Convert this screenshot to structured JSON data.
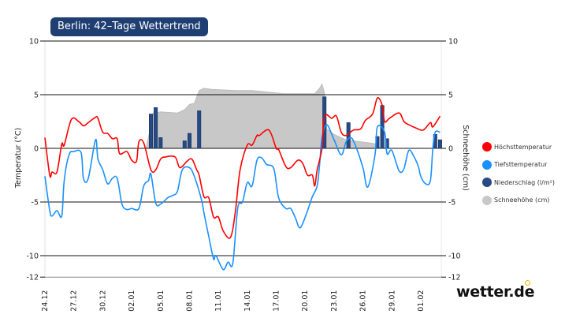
{
  "title": "Berlin: 42–Tage Wettertrend",
  "logo": "wetter.de",
  "colors": {
    "max": "#ff0000",
    "min": "#1a90ff",
    "precip": "#254a85",
    "snow": "#c8c8c8",
    "title_bg": "#1f3f73",
    "logo_accent": "#f5b400"
  },
  "chart_data": {
    "type": "line",
    "title": "Berlin: 42–Tage Wettertrend",
    "ylabel": "Temperatur (°C)",
    "y2label": "Schneehöhe (cm)",
    "ylim": [
      -12,
      10
    ],
    "y2lim": [
      -12,
      10
    ],
    "yticks": [
      10,
      5,
      0,
      -5,
      -10,
      -12
    ],
    "xticks": [
      "24.12",
      "27.12",
      "30.12",
      "02.01",
      "05.01",
      "08.01",
      "11.01",
      "14.01",
      "17.01",
      "20.01",
      "23.01",
      "26.01",
      "29.01",
      "01.02"
    ],
    "grid": true,
    "legend_position": "right",
    "legend": [
      "Höchsttemperatur",
      "Tiefsttemperatur",
      "Niederschlag (l/m²)",
      "Schneehöhe (cm)"
    ],
    "series": [
      {
        "name": "Höchsttemperatur",
        "type": "line",
        "color": "#ff0000",
        "points": [
          [
            "24.12 00",
            1
          ],
          [
            "24.12 12",
            -2.5
          ],
          [
            "24.12 18",
            -2.2
          ],
          [
            "25.12 06",
            -2.2
          ],
          [
            "25.12 18",
            0.4
          ],
          [
            "26.12 00",
            0.3
          ],
          [
            "26.12 18",
            2.7
          ],
          [
            "27.12 12",
            2.5
          ],
          [
            "28.12 00",
            2.1
          ],
          [
            "28.12 12",
            2.4
          ],
          [
            "29.12 06",
            2.9
          ],
          [
            "29.12 12",
            2.8
          ],
          [
            "30.12 00",
            1.5
          ],
          [
            "30.12 12",
            1.4
          ],
          [
            "31.12 00",
            0.9
          ],
          [
            "31.12 12",
            0.9
          ],
          [
            "31.12 18",
            -0.5
          ],
          [
            "01.01 12",
            -0.3
          ],
          [
            "02.01 00",
            -1.1
          ],
          [
            "02.01 12",
            -1.2
          ],
          [
            "02.01 18",
            0.6
          ],
          [
            "03.01 06",
            0.5
          ],
          [
            "04.01 00",
            -2
          ],
          [
            "04.01 12",
            -2
          ],
          [
            "05.01 00",
            -1
          ],
          [
            "05.01 12",
            -0.8
          ],
          [
            "06.01 12",
            -0.8
          ],
          [
            "07.01 00",
            -1.8
          ],
          [
            "07.01 18",
            -1.2
          ],
          [
            "08.01 06",
            -1
          ],
          [
            "08.01 18",
            -2
          ],
          [
            "09.01 00",
            -2.5
          ],
          [
            "09.01 12",
            -4.5
          ],
          [
            "10.01 00",
            -4.6
          ],
          [
            "10.01 12",
            -6.4
          ],
          [
            "11.01 00",
            -6.4
          ],
          [
            "11.01 12",
            -7.7
          ],
          [
            "12.01 06",
            -8.3
          ],
          [
            "12.01 18",
            -6
          ],
          [
            "13.01 06",
            -2
          ],
          [
            "14.01 00",
            0.3
          ],
          [
            "14.01 12",
            0.3
          ],
          [
            "15.01 00",
            1.2
          ],
          [
            "15.01 06",
            1.2
          ],
          [
            "16.01 06",
            1.7
          ],
          [
            "17.01 00",
            0
          ],
          [
            "17.01 06",
            -0.1
          ],
          [
            "18.01 00",
            -1.7
          ],
          [
            "18.01 12",
            -1.8
          ],
          [
            "19.01 06",
            -1.1
          ],
          [
            "19.01 18",
            -1.4
          ],
          [
            "20.01 06",
            -2.5
          ],
          [
            "20.01 18",
            -2.5
          ],
          [
            "21.01 00",
            -3.5
          ],
          [
            "21.01 06",
            -2
          ],
          [
            "21.01 18",
            0
          ],
          [
            "22.01 00",
            3
          ],
          [
            "22.01 18",
            2.8
          ],
          [
            "23.01 06",
            3
          ],
          [
            "23.01 18",
            1.5
          ],
          [
            "24.01 06",
            1.2
          ],
          [
            "25.01 00",
            1.7
          ],
          [
            "25.01 18",
            1.8
          ],
          [
            "26.01 06",
            2.6
          ],
          [
            "27.01 00",
            3.2
          ],
          [
            "27.01 12",
            4.7
          ],
          [
            "28.01 00",
            4
          ],
          [
            "28.01 06",
            2.5
          ],
          [
            "28.01 18",
            2.8
          ],
          [
            "29.01 18",
            3.3
          ],
          [
            "30.01 06",
            2.5
          ],
          [
            "30.01 18",
            2.2
          ],
          [
            "31.01 12",
            1.9
          ],
          [
            "01.02 06",
            1.7
          ],
          [
            "02.02 00",
            2.4
          ],
          [
            "02.02 06",
            2
          ],
          [
            "03.02 00",
            3
          ]
        ]
      },
      {
        "name": "Tiefsttemperatur",
        "type": "line",
        "color": "#1a90ff",
        "points": [
          [
            "24.12 00",
            -2.6
          ],
          [
            "24.12 12",
            -5.8
          ],
          [
            "24.12 18",
            -6.3
          ],
          [
            "25.12 06",
            -5.8
          ],
          [
            "25.12 18",
            -6.3
          ],
          [
            "26.12 00",
            -3
          ],
          [
            "26.12 12",
            -0.6
          ],
          [
            "27.12 00",
            -0.3
          ],
          [
            "27.12 18",
            -0.4
          ],
          [
            "28.12 00",
            -2.8
          ],
          [
            "28.12 12",
            -2.8
          ],
          [
            "29.12 06",
            0.8
          ],
          [
            "29.12 12",
            -1
          ],
          [
            "30.12 00",
            -2
          ],
          [
            "30.12 12",
            -3.3
          ],
          [
            "31.12 00",
            -2.8
          ],
          [
            "31.12 12",
            -2.8
          ],
          [
            "01.01 00",
            -5.2
          ],
          [
            "01.01 12",
            -5.7
          ],
          [
            "02.01 00",
            -5.6
          ],
          [
            "02.01 18",
            -5.6
          ],
          [
            "03.01 06",
            -3.5
          ],
          [
            "03.01 18",
            -3
          ],
          [
            "04.01 00",
            -2.4
          ],
          [
            "04.01 12",
            -5.1
          ],
          [
            "05.01 00",
            -5.2
          ],
          [
            "05.01 18",
            -4.6
          ],
          [
            "06.01 06",
            -4.4
          ],
          [
            "06.01 18",
            -4
          ],
          [
            "07.01 06",
            -2
          ],
          [
            "08.01 00",
            -1.8
          ],
          [
            "08.01 12",
            -2.6
          ],
          [
            "09.01 06",
            -4.8
          ],
          [
            "09.01 12",
            -6
          ],
          [
            "10.01 00",
            -8.2
          ],
          [
            "10.01 12",
            -10.3
          ],
          [
            "10.01 18",
            -10
          ],
          [
            "11.01 12",
            -11.3
          ],
          [
            "12.01 00",
            -10.6
          ],
          [
            "12.01 12",
            -10.7
          ],
          [
            "13.01 00",
            -5.6
          ],
          [
            "13.01 12",
            -5
          ],
          [
            "14.01 00",
            -3.2
          ],
          [
            "14.01 12",
            -3.5
          ],
          [
            "15.01 00",
            -1.1
          ],
          [
            "15.01 12",
            -0.9
          ],
          [
            "16.01 00",
            -1.5
          ],
          [
            "16.01 18",
            -1.9
          ],
          [
            "17.01 06",
            -4.6
          ],
          [
            "18.01 00",
            -5.6
          ],
          [
            "18.01 12",
            -5.6
          ],
          [
            "19.01 00",
            -6.5
          ],
          [
            "19.01 12",
            -7.4
          ],
          [
            "20.01 06",
            -5.8
          ],
          [
            "20.01 18",
            -4.5
          ],
          [
            "21.01 06",
            -3.5
          ],
          [
            "21.01 12",
            -1.5
          ],
          [
            "21.01 18",
            1
          ],
          [
            "22.01 06",
            2.2
          ],
          [
            "23.01 00",
            0.8
          ],
          [
            "23.01 18",
            -0.6
          ],
          [
            "24.01 06",
            0.6
          ],
          [
            "24.01 18",
            1
          ],
          [
            "25.01 06",
            0.2
          ],
          [
            "26.01 00",
            -1.8
          ],
          [
            "26.01 12",
            -3.6
          ],
          [
            "27.01 06",
            -0.6
          ],
          [
            "27.01 12",
            2
          ],
          [
            "28.01 06",
            1.5
          ],
          [
            "28.01 12",
            -0.5
          ],
          [
            "29.01 00",
            -0.2
          ],
          [
            "29.01 18",
            -2.1
          ],
          [
            "30.01 06",
            -1.9
          ],
          [
            "30.01 18",
            -0.2
          ],
          [
            "31.01 06",
            -0.7
          ],
          [
            "31.01 18",
            -1.7
          ],
          [
            "01.02 00",
            -2.6
          ],
          [
            "01.02 12",
            -3.3
          ],
          [
            "02.02 00",
            -3
          ],
          [
            "02.02 06",
            0
          ],
          [
            "02.02 12",
            1.5
          ],
          [
            "03.02 00",
            1.5
          ]
        ]
      },
      {
        "name": "Niederschlag (l/m²)",
        "type": "bar",
        "color": "#254a85",
        "points": [
          [
            "04.01 00",
            3.2
          ],
          [
            "04.01 12",
            3.8
          ],
          [
            "05.01 00",
            1.0
          ],
          [
            "07.01 12",
            0.7
          ],
          [
            "08.01 00",
            1.4
          ],
          [
            "09.01 00",
            3.5
          ],
          [
            "22.01 00",
            4.8
          ],
          [
            "24.01 12",
            2.4
          ],
          [
            "27.01 12",
            1.1
          ],
          [
            "28.01 00",
            4.0
          ],
          [
            "28.01 12",
            0.9
          ],
          [
            "02.02 12",
            1.3
          ],
          [
            "03.02 00",
            0.8
          ]
        ]
      },
      {
        "name": "Schneehöhe (cm)",
        "type": "area",
        "color": "#c8c8c8",
        "points": [
          [
            "03.01 12",
            0
          ],
          [
            "04.01 06",
            3.3
          ],
          [
            "05.01 00",
            3.4
          ],
          [
            "06.01 18",
            3.3
          ],
          [
            "07.01 12",
            3.6
          ],
          [
            "08.01 00",
            4.1
          ],
          [
            "08.01 12",
            4.2
          ],
          [
            "09.01 00",
            5.4
          ],
          [
            "09.01 12",
            5.6
          ],
          [
            "10.01 06",
            5.5
          ],
          [
            "12.01 18",
            5.4
          ],
          [
            "14.01 12",
            5.4
          ],
          [
            "17.01 18",
            5.1
          ],
          [
            "21.01 00",
            5.1
          ],
          [
            "21.01 12",
            5.6
          ],
          [
            "21.01 18",
            6
          ],
          [
            "22.01 00",
            5.2
          ],
          [
            "22.01 06",
            1.8
          ],
          [
            "23.01 00",
            1.3
          ],
          [
            "24.01 06",
            0.8
          ],
          [
            "25.01 00",
            0.7
          ],
          [
            "26.01 18",
            0.5
          ],
          [
            "27.01 12",
            0.4
          ],
          [
            "27.01 18",
            0
          ]
        ]
      }
    ]
  }
}
